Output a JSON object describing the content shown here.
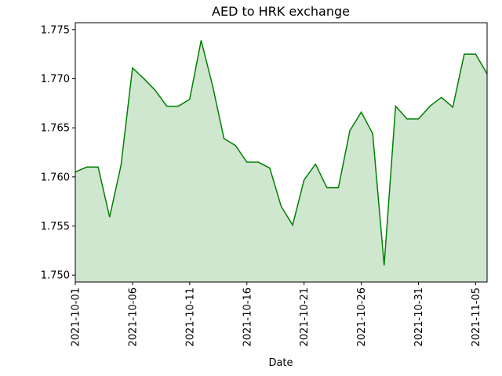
{
  "chart_data": {
    "type": "area",
    "title": "AED to HRK exchange",
    "xlabel": "Date",
    "ylabel": "",
    "ylim": [
      1.7493,
      1.7757
    ],
    "xlim": [
      "2021-10-01",
      "2021-11-06"
    ],
    "grid": false,
    "line_color": "#008000",
    "fill_color": "#cfe6cf",
    "x_ticks": [
      "2021-10-01",
      "2021-10-06",
      "2021-10-11",
      "2021-10-16",
      "2021-10-21",
      "2021-10-26",
      "2021-10-31",
      "2021-11-05"
    ],
    "y_ticks": [
      "1.750",
      "1.755",
      "1.760",
      "1.765",
      "1.770",
      "1.775"
    ],
    "x": [
      "2021-10-01",
      "2021-10-02",
      "2021-10-03",
      "2021-10-04",
      "2021-10-05",
      "2021-10-06",
      "2021-10-07",
      "2021-10-08",
      "2021-10-09",
      "2021-10-10",
      "2021-10-11",
      "2021-10-12",
      "2021-10-13",
      "2021-10-14",
      "2021-10-15",
      "2021-10-16",
      "2021-10-17",
      "2021-10-18",
      "2021-10-19",
      "2021-10-20",
      "2021-10-21",
      "2021-10-22",
      "2021-10-23",
      "2021-10-24",
      "2021-10-25",
      "2021-10-26",
      "2021-10-27",
      "2021-10-28",
      "2021-10-29",
      "2021-10-30",
      "2021-10-31",
      "2021-11-01",
      "2021-11-02",
      "2021-11-03",
      "2021-11-04",
      "2021-11-05",
      "2021-11-06"
    ],
    "values": [
      1.7605,
      1.761,
      1.761,
      1.7559,
      1.7612,
      1.7711,
      1.77,
      1.7688,
      1.7672,
      1.7672,
      1.7679,
      1.7739,
      1.7693,
      1.7639,
      1.7632,
      1.7615,
      1.7615,
      1.7609,
      1.757,
      1.7551,
      1.7597,
      1.7613,
      1.7589,
      1.7589,
      1.7647,
      1.7666,
      1.7644,
      1.751,
      1.7672,
      1.7659,
      1.7659,
      1.7672,
      1.7681,
      1.7671,
      1.7725,
      1.7725,
      1.7705
    ]
  }
}
